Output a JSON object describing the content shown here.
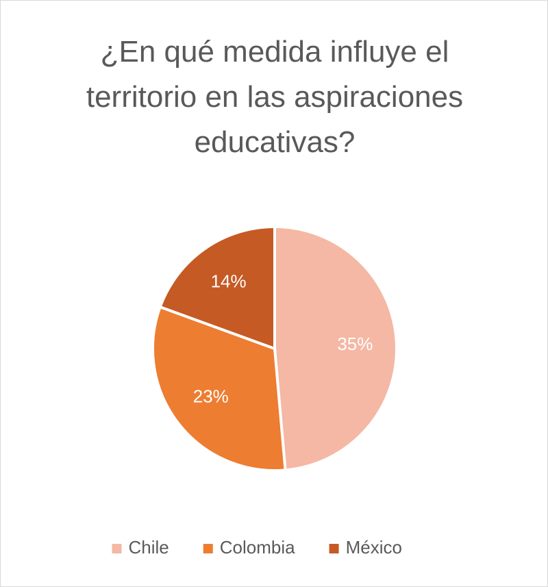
{
  "chart_data": {
    "type": "pie",
    "title": "¿En qué medida influye el territorio en las aspiraciones educativas?",
    "categories": [
      "Chile",
      "Colombia",
      "México"
    ],
    "values": [
      35,
      23,
      14
    ],
    "value_labels": [
      "35%",
      "23%",
      "14%"
    ],
    "colors": [
      "#f4b8a4",
      "#ed7d31",
      "#c55a24"
    ],
    "legend": "bottom"
  }
}
